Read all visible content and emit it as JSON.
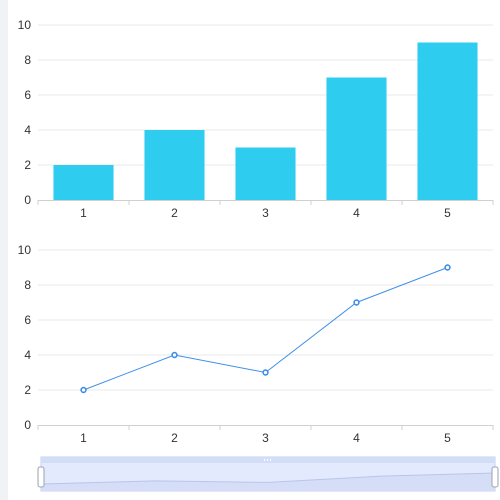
{
  "chart_data": [
    {
      "type": "bar",
      "categories": [
        "1",
        "2",
        "3",
        "4",
        "5"
      ],
      "values": [
        2,
        4,
        3,
        7,
        9
      ],
      "ylim": [
        0,
        10
      ],
      "yticks": [
        "0",
        "2",
        "4",
        "6",
        "8",
        "10"
      ],
      "grid": true,
      "color": "#2ecdf0"
    },
    {
      "type": "line",
      "categories": [
        "1",
        "2",
        "3",
        "4",
        "5"
      ],
      "values": [
        2,
        4,
        3,
        7,
        9
      ],
      "ylim": [
        0,
        10
      ],
      "yticks": [
        "0",
        "2",
        "4",
        "6",
        "8",
        "10"
      ],
      "grid": true,
      "color": "#3f8fe8"
    }
  ],
  "zoom": {
    "start_percent": 0,
    "end_percent": 100
  },
  "colors": {
    "bar": "#2ecdf0",
    "line": "#3f8fe8",
    "grid": "#e8e8e8",
    "axis": "#d0d0d0",
    "zoom_fill": "#e3eafd",
    "zoom_border": "#c5d2f3"
  }
}
